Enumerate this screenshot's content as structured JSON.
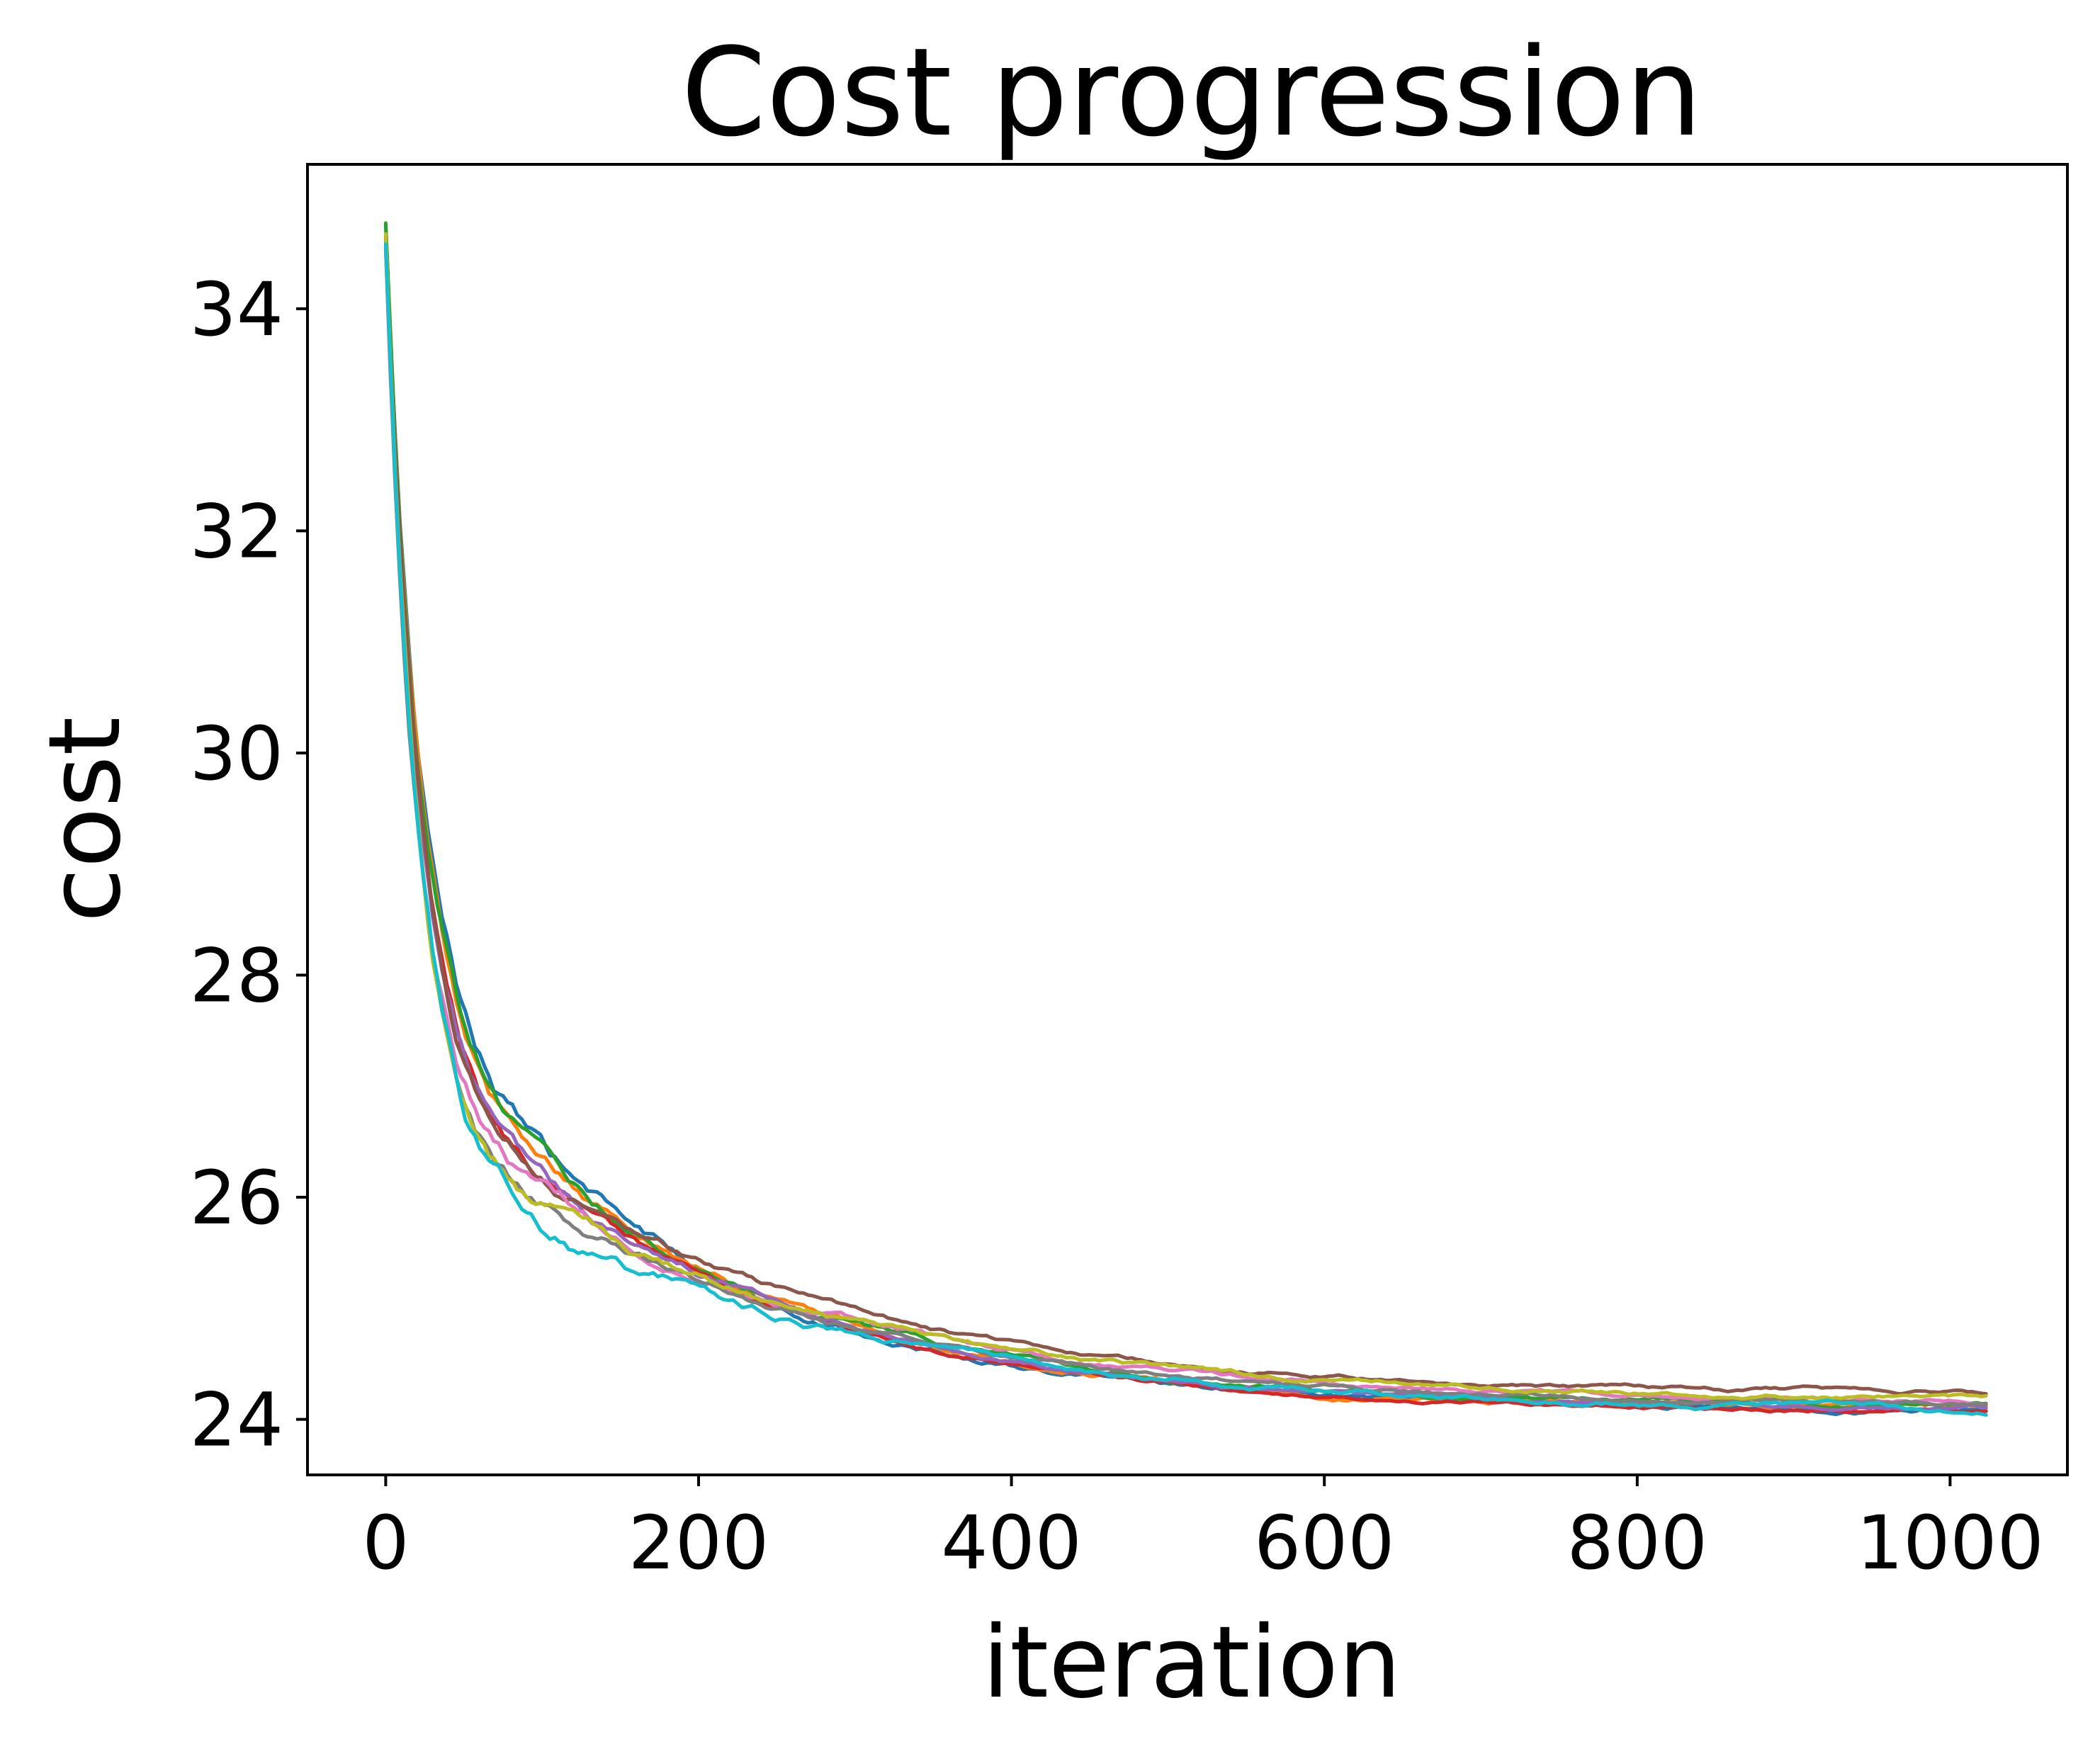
{
  "chart_data": {
    "type": "line",
    "title": "Cost progression",
    "xlabel": "iteration",
    "ylabel": "cost",
    "xlim": [
      -50,
      1075
    ],
    "ylim": [
      23.5,
      35.3
    ],
    "xticks": [
      0,
      200,
      400,
      600,
      800,
      1000
    ],
    "yticks": [
      24,
      26,
      28,
      30,
      32,
      34
    ],
    "grid": false,
    "legend": "none",
    "x_max": 1025,
    "series": [
      {
        "color": "#1f77b4",
        "start": 34.7,
        "end": 24.08,
        "noise": 0.1
      },
      {
        "color": "#ff7f0e",
        "start": 34.6,
        "end": 24.1,
        "noise": 0.09
      },
      {
        "color": "#2ca02c",
        "start": 34.7,
        "end": 24.12,
        "noise": 0.09
      },
      {
        "color": "#d62728",
        "start": 34.5,
        "end": 24.06,
        "noise": 0.07
      },
      {
        "color": "#9467bd",
        "start": 34.6,
        "end": 24.09,
        "noise": 0.08
      },
      {
        "color": "#8c564b",
        "start": 34.7,
        "end": 24.22,
        "noise": 0.08
      },
      {
        "color": "#e377c2",
        "start": 34.6,
        "end": 24.15,
        "noise": 0.09
      },
      {
        "color": "#7f7f7f",
        "start": 34.6,
        "end": 24.11,
        "noise": 0.08
      },
      {
        "color": "#bcbd22",
        "start": 34.7,
        "end": 24.17,
        "noise": 0.09
      },
      {
        "color": "#17becf",
        "start": 34.6,
        "end": 24.07,
        "noise": 0.11
      }
    ]
  }
}
